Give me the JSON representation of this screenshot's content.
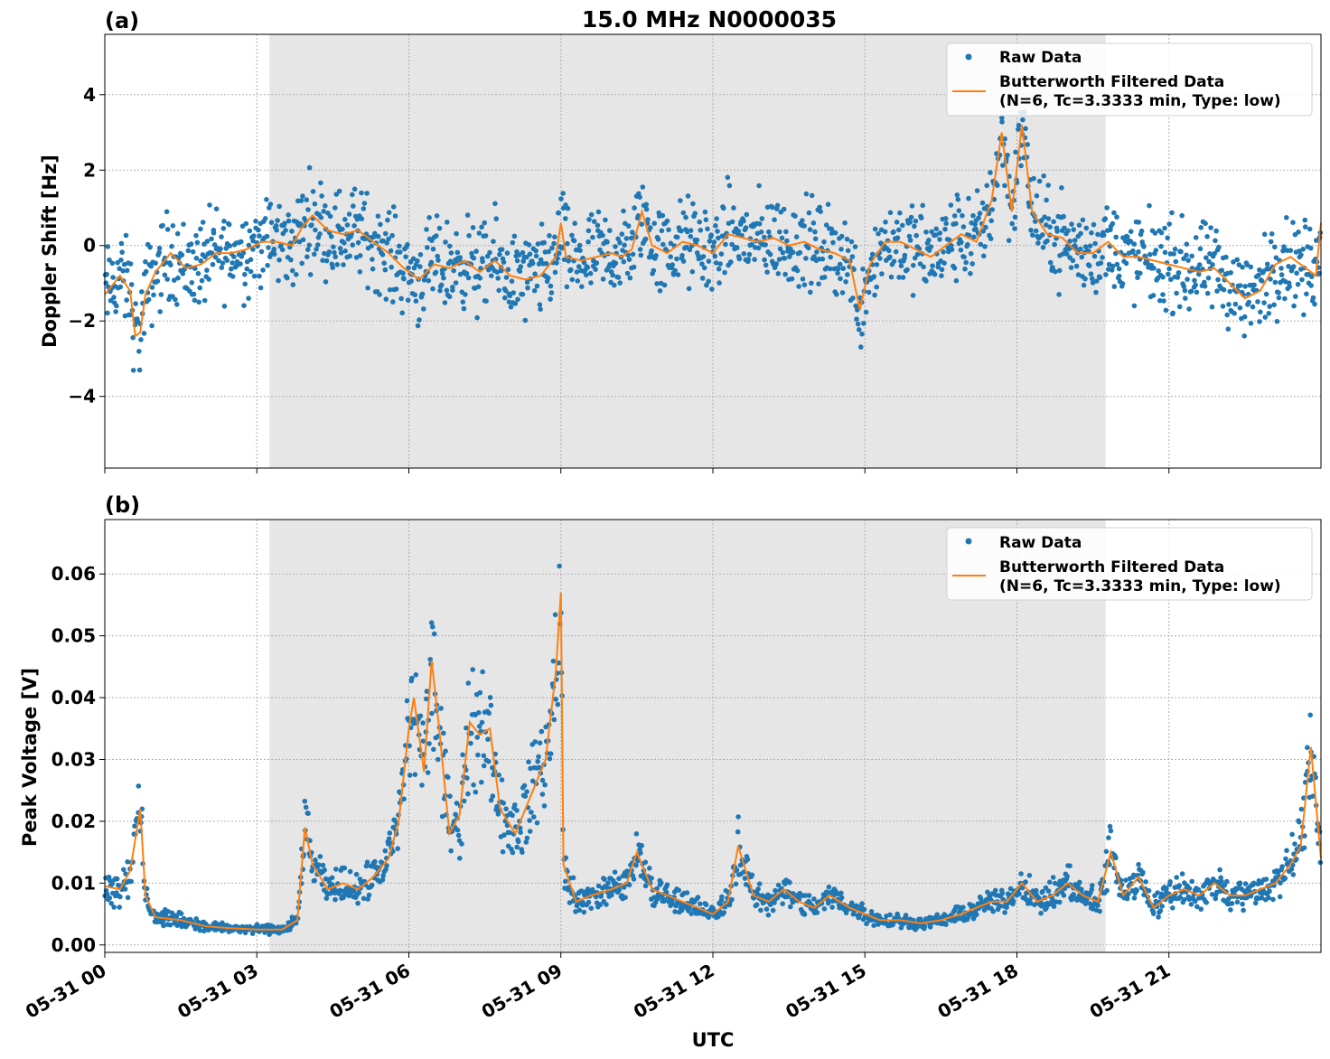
{
  "title": "15.0 MHz N0000035",
  "colors": {
    "raw": "#1f77b4",
    "filtered": "#ff7f0e",
    "shade": "#e6e6e6",
    "grid": "#b0b0b0"
  },
  "x_axis": {
    "label": "UTC",
    "range_hours": [
      0,
      24
    ],
    "ticks": [
      {
        "h": 0,
        "label": "05-31 00"
      },
      {
        "h": 3,
        "label": "05-31 03"
      },
      {
        "h": 6,
        "label": "05-31 06"
      },
      {
        "h": 9,
        "label": "05-31 09"
      },
      {
        "h": 12,
        "label": "05-31 12"
      },
      {
        "h": 15,
        "label": "05-31 15"
      },
      {
        "h": 18,
        "label": "05-31 18"
      },
      {
        "h": 21,
        "label": "05-31 21"
      }
    ]
  },
  "legend": {
    "raw": "Raw Data",
    "filtered_line1": "Butterworth Filtered Data",
    "filtered_line2": "(N=6, Tc=3.3333 min, Type: low)"
  },
  "chart_data": [
    {
      "panel": "(a)",
      "type": "scatter+line",
      "ylabel": "Doppler Shift [Hz]",
      "ylim": [
        -5.9,
        5.6
      ],
      "yticks": [
        {
          "v": -4,
          "label": "−4"
        },
        {
          "v": -2,
          "label": "−2"
        },
        {
          "v": 0,
          "label": "0"
        },
        {
          "v": 2,
          "label": "2"
        },
        {
          "v": 4,
          "label": "4"
        }
      ],
      "shaded_hours": [
        3.25,
        19.75
      ],
      "grid": true,
      "legend_position": "top-right",
      "filtered_series": [
        [
          0,
          -1.3
        ],
        [
          0.3,
          -0.8
        ],
        [
          0.5,
          -1.2
        ],
        [
          0.6,
          -2.4
        ],
        [
          0.7,
          -2.3
        ],
        [
          0.8,
          -1.3
        ],
        [
          1,
          -0.7
        ],
        [
          1.3,
          -0.2
        ],
        [
          1.6,
          -0.6
        ],
        [
          1.9,
          -0.5
        ],
        [
          2.2,
          -0.2
        ],
        [
          2.5,
          -0.2
        ],
        [
          2.8,
          -0.1
        ],
        [
          3.1,
          0.1
        ],
        [
          3.4,
          0.1
        ],
        [
          3.7,
          0.0
        ],
        [
          3.9,
          0.5
        ],
        [
          4.1,
          0.8
        ],
        [
          4.4,
          0.4
        ],
        [
          4.7,
          0.3
        ],
        [
          5,
          0.4
        ],
        [
          5.3,
          0.1
        ],
        [
          5.6,
          -0.2
        ],
        [
          5.9,
          -0.6
        ],
        [
          6.2,
          -0.9
        ],
        [
          6.5,
          -0.5
        ],
        [
          6.8,
          -0.6
        ],
        [
          7.1,
          -0.4
        ],
        [
          7.4,
          -0.7
        ],
        [
          7.7,
          -0.4
        ],
        [
          8,
          -0.8
        ],
        [
          8.3,
          -0.9
        ],
        [
          8.6,
          -0.8
        ],
        [
          8.9,
          -0.3
        ],
        [
          9.0,
          0.6
        ],
        [
          9.1,
          -0.3
        ],
        [
          9.4,
          -0.4
        ],
        [
          9.7,
          -0.3
        ],
        [
          10.0,
          -0.2
        ],
        [
          10.2,
          -0.3
        ],
        [
          10.4,
          -0.1
        ],
        [
          10.6,
          0.9
        ],
        [
          10.8,
          0.0
        ],
        [
          11.1,
          -0.2
        ],
        [
          11.4,
          0.1
        ],
        [
          11.7,
          0.0
        ],
        [
          12,
          -0.2
        ],
        [
          12.3,
          0.3
        ],
        [
          12.6,
          0.2
        ],
        [
          12.9,
          0.1
        ],
        [
          13.2,
          0.2
        ],
        [
          13.5,
          0.0
        ],
        [
          13.8,
          0.1
        ],
        [
          14.1,
          -0.1
        ],
        [
          14.4,
          -0.2
        ],
        [
          14.7,
          -0.4
        ],
        [
          14.9,
          -1.7
        ],
        [
          15.1,
          -0.5
        ],
        [
          15.4,
          0.1
        ],
        [
          15.7,
          0.1
        ],
        [
          16,
          -0.1
        ],
        [
          16.3,
          -0.3
        ],
        [
          16.6,
          0.0
        ],
        [
          16.9,
          0.3
        ],
        [
          17.2,
          0.1
        ],
        [
          17.5,
          1.2
        ],
        [
          17.7,
          3.0
        ],
        [
          17.9,
          0.9
        ],
        [
          18.1,
          3.2
        ],
        [
          18.3,
          0.9
        ],
        [
          18.6,
          0.3
        ],
        [
          18.9,
          0.2
        ],
        [
          19.2,
          -0.2
        ],
        [
          19.5,
          -0.2
        ],
        [
          19.8,
          0.1
        ],
        [
          20.1,
          -0.3
        ],
        [
          20.4,
          -0.3
        ],
        [
          20.7,
          -0.4
        ],
        [
          21,
          -0.5
        ],
        [
          21.3,
          -0.6
        ],
        [
          21.6,
          -0.7
        ],
        [
          21.9,
          -0.6
        ],
        [
          22.2,
          -1.0
        ],
        [
          22.5,
          -1.4
        ],
        [
          22.8,
          -1.2
        ],
        [
          23.1,
          -0.5
        ],
        [
          23.4,
          -0.3
        ],
        [
          23.7,
          -0.6
        ],
        [
          23.9,
          -0.8
        ],
        [
          24,
          0.6
        ]
      ],
      "raw_spread_hz": 0.9
    },
    {
      "panel": "(b)",
      "type": "scatter+line",
      "ylabel": "Peak Voltage [V]",
      "ylim": [
        -0.0012,
        0.0688
      ],
      "yticks": [
        {
          "v": 0.0,
          "label": "0.00"
        },
        {
          "v": 0.01,
          "label": "0.01"
        },
        {
          "v": 0.02,
          "label": "0.02"
        },
        {
          "v": 0.03,
          "label": "0.03"
        },
        {
          "v": 0.04,
          "label": "0.04"
        },
        {
          "v": 0.05,
          "label": "0.05"
        },
        {
          "v": 0.06,
          "label": "0.06"
        }
      ],
      "shaded_hours": [
        3.25,
        19.75
      ],
      "grid": true,
      "legend_position": "top-right",
      "filtered_series": [
        [
          0,
          0.0095
        ],
        [
          0.3,
          0.009
        ],
        [
          0.5,
          0.012
        ],
        [
          0.7,
          0.022
        ],
        [
          0.8,
          0.008
        ],
        [
          1.0,
          0.0045
        ],
        [
          1.5,
          0.004
        ],
        [
          2,
          0.003
        ],
        [
          2.5,
          0.0027
        ],
        [
          3,
          0.0025
        ],
        [
          3.5,
          0.0025
        ],
        [
          3.8,
          0.004
        ],
        [
          3.95,
          0.019
        ],
        [
          4.1,
          0.013
        ],
        [
          4.4,
          0.009
        ],
        [
          4.7,
          0.01
        ],
        [
          5.0,
          0.009
        ],
        [
          5.3,
          0.011
        ],
        [
          5.6,
          0.014
        ],
        [
          5.8,
          0.02
        ],
        [
          6.0,
          0.035
        ],
        [
          6.1,
          0.04
        ],
        [
          6.3,
          0.028
        ],
        [
          6.45,
          0.046
        ],
        [
          6.6,
          0.035
        ],
        [
          6.8,
          0.018
        ],
        [
          7.0,
          0.021
        ],
        [
          7.2,
          0.036
        ],
        [
          7.4,
          0.034
        ],
        [
          7.6,
          0.035
        ],
        [
          7.8,
          0.022
        ],
        [
          8.1,
          0.018
        ],
        [
          8.4,
          0.024
        ],
        [
          8.7,
          0.03
        ],
        [
          8.9,
          0.044
        ],
        [
          9.0,
          0.057
        ],
        [
          9.05,
          0.013
        ],
        [
          9.3,
          0.007
        ],
        [
          9.6,
          0.008
        ],
        [
          10,
          0.009
        ],
        [
          10.3,
          0.01
        ],
        [
          10.5,
          0.015
        ],
        [
          10.8,
          0.009
        ],
        [
          11.1,
          0.008
        ],
        [
          11.4,
          0.007
        ],
        [
          11.7,
          0.006
        ],
        [
          12.0,
          0.005
        ],
        [
          12.3,
          0.007
        ],
        [
          12.5,
          0.016
        ],
        [
          12.8,
          0.008
        ],
        [
          13.1,
          0.007
        ],
        [
          13.4,
          0.009
        ],
        [
          13.7,
          0.007
        ],
        [
          14.0,
          0.006
        ],
        [
          14.3,
          0.008
        ],
        [
          14.7,
          0.006
        ],
        [
          15.0,
          0.005
        ],
        [
          15.3,
          0.004
        ],
        [
          15.7,
          0.004
        ],
        [
          16.1,
          0.0035
        ],
        [
          16.5,
          0.004
        ],
        [
          16.9,
          0.005
        ],
        [
          17.2,
          0.006
        ],
        [
          17.5,
          0.007
        ],
        [
          17.8,
          0.007
        ],
        [
          18.1,
          0.01
        ],
        [
          18.4,
          0.007
        ],
        [
          18.7,
          0.008
        ],
        [
          19.0,
          0.01
        ],
        [
          19.3,
          0.008
        ],
        [
          19.6,
          0.007
        ],
        [
          19.85,
          0.015
        ],
        [
          20.1,
          0.008
        ],
        [
          20.4,
          0.011
        ],
        [
          20.7,
          0.006
        ],
        [
          21.0,
          0.008
        ],
        [
          21.3,
          0.009
        ],
        [
          21.6,
          0.008
        ],
        [
          21.9,
          0.01
        ],
        [
          22.2,
          0.008
        ],
        [
          22.5,
          0.008
        ],
        [
          22.8,
          0.009
        ],
        [
          23.1,
          0.01
        ],
        [
          23.4,
          0.013
        ],
        [
          23.6,
          0.016
        ],
        [
          23.8,
          0.032
        ],
        [
          24,
          0.014
        ]
      ],
      "raw_spread_frac": 0.25
    }
  ]
}
